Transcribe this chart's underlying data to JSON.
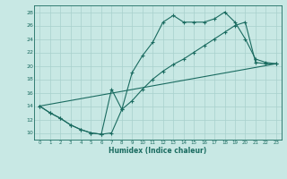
{
  "xlabel": "Humidex (Indice chaleur)",
  "xlim": [
    -0.5,
    23.5
  ],
  "ylim": [
    9,
    29
  ],
  "xticks": [
    0,
    1,
    2,
    3,
    4,
    5,
    6,
    7,
    8,
    9,
    10,
    11,
    12,
    13,
    14,
    15,
    16,
    17,
    18,
    19,
    20,
    21,
    22,
    23
  ],
  "yticks": [
    10,
    12,
    14,
    16,
    18,
    20,
    22,
    24,
    26,
    28
  ],
  "background_color": "#c8e8e4",
  "grid_color": "#a8d0cc",
  "line_color": "#1a6b60",
  "line1_x": [
    0,
    1,
    2,
    3,
    4,
    5,
    6,
    7,
    8,
    9,
    10,
    11,
    12,
    13,
    14,
    15,
    16,
    17,
    18,
    19,
    20,
    21,
    22,
    23
  ],
  "line1_y": [
    14,
    13,
    12.2,
    11.2,
    10.5,
    10,
    9.8,
    16.5,
    13.5,
    19,
    21.5,
    23.5,
    26.5,
    27.5,
    26.5,
    26.5,
    26.5,
    27,
    28,
    26.5,
    24,
    21,
    20.5,
    20.3
  ],
  "line2_x": [
    0,
    1,
    2,
    3,
    4,
    5,
    6,
    7,
    8,
    9,
    10,
    11,
    12,
    13,
    14,
    15,
    16,
    17,
    18,
    19,
    20,
    21,
    22,
    23
  ],
  "line2_y": [
    14,
    13,
    12.2,
    11.2,
    10.5,
    10,
    9.8,
    10,
    13.5,
    14.8,
    16.5,
    18,
    19.2,
    20.2,
    21,
    22,
    23,
    24,
    25,
    26,
    26.5,
    20.5,
    20.3,
    20.3
  ],
  "line3_x": [
    0,
    23
  ],
  "line3_y": [
    14,
    20.3
  ]
}
